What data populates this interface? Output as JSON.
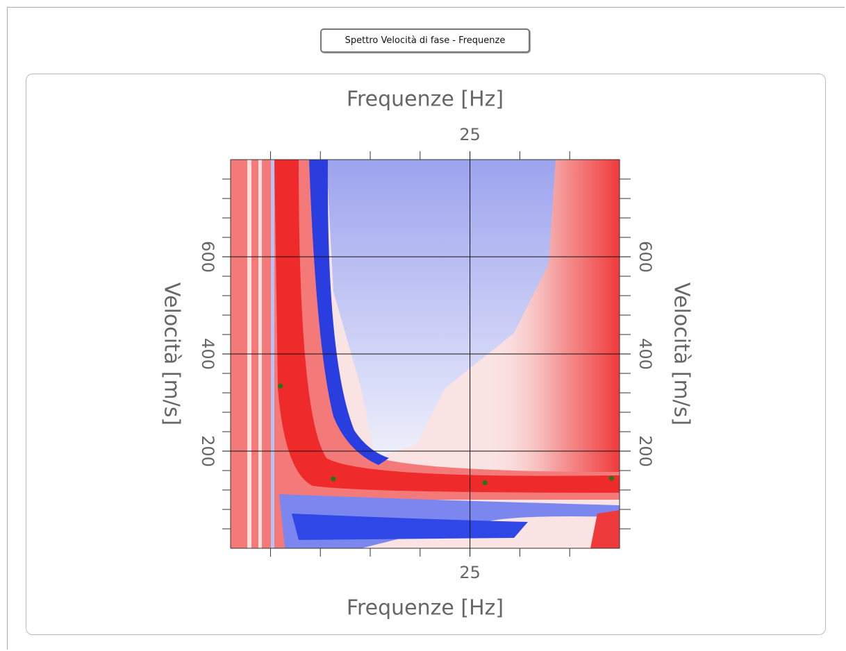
{
  "window": {
    "tab_title": "Spettro Velocità di fase - Frequenze"
  },
  "chart_data": {
    "type": "scatter",
    "x_label": "Frequenze [Hz]",
    "y_label": "Velocità [m/s]",
    "xlim": [
      1,
      40
    ],
    "xticks": [
      25
    ],
    "x_minor_ticks": [
      5,
      10,
      15,
      20,
      30,
      35
    ],
    "ylim": [
      0,
      800
    ],
    "yticks": [
      200,
      400,
      600
    ],
    "y_minor_ticks": [
      40,
      80,
      120,
      160,
      240,
      280,
      320,
      360,
      440,
      480,
      520,
      560,
      640,
      680,
      720,
      760
    ],
    "grid": true,
    "color": "#1a7a1a",
    "x": [
      6,
      11.3,
      26.5,
      39.2
    ],
    "values": [
      334,
      143,
      135,
      144
    ]
  }
}
